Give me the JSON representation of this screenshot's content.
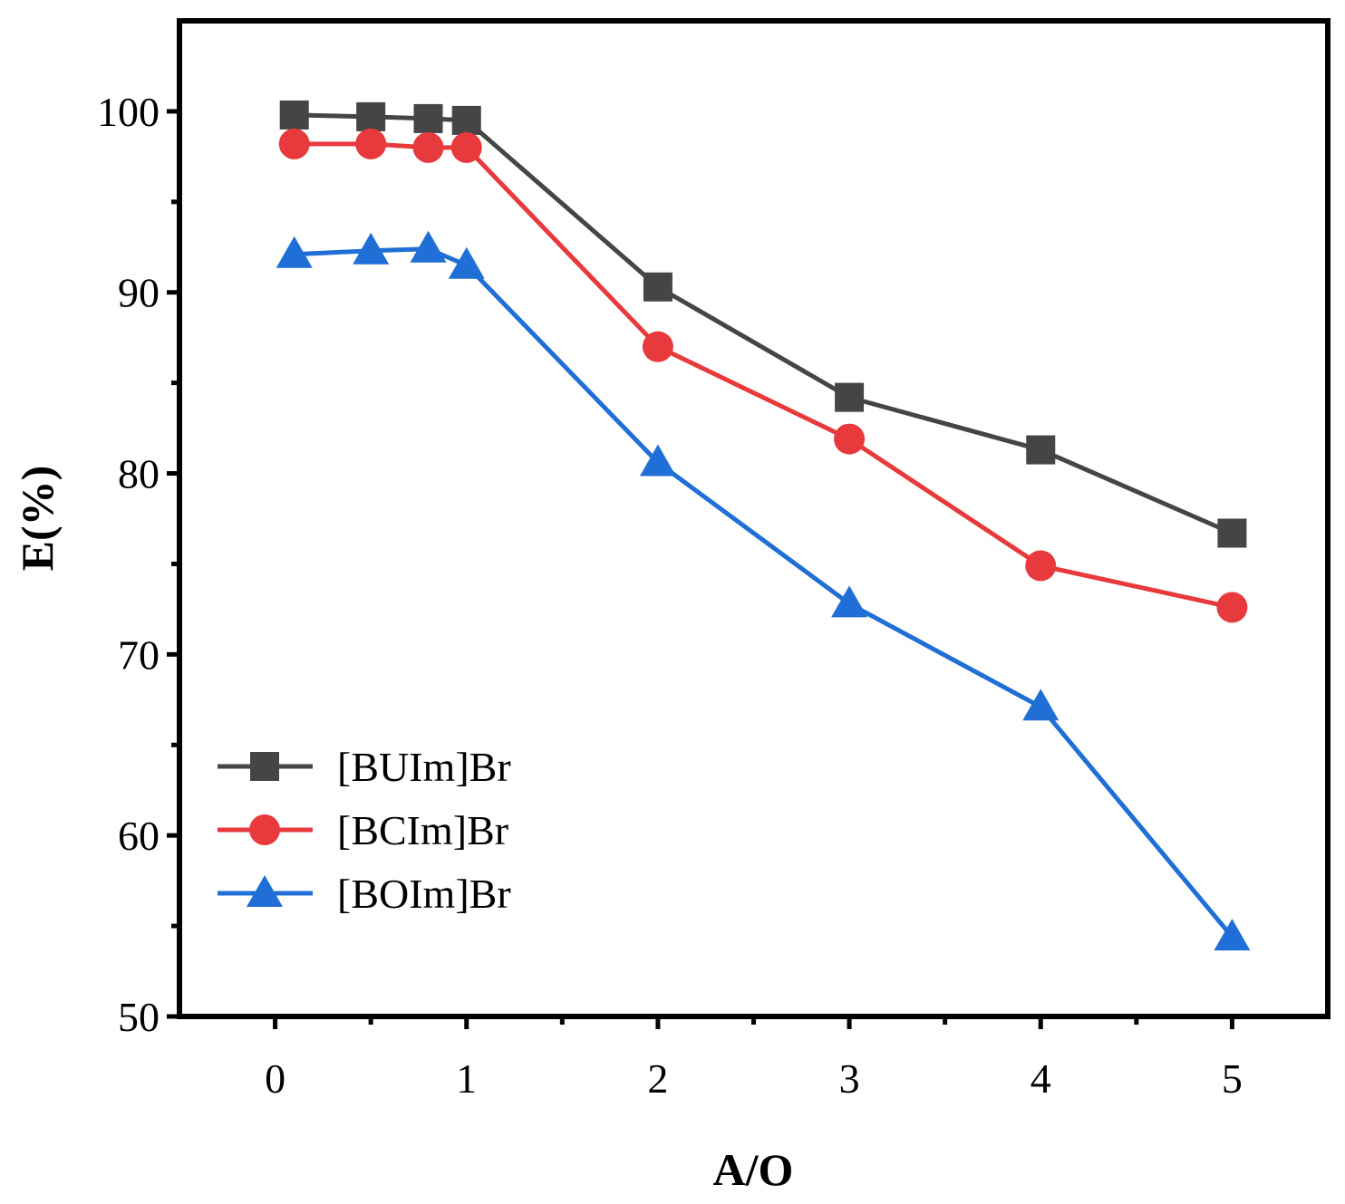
{
  "chart_data": {
    "type": "line",
    "title": "",
    "xlabel": "A/O",
    "ylabel": "E(%)",
    "xlim": [
      -0.5,
      5.5
    ],
    "ylim": [
      50,
      105
    ],
    "xticks": [
      0,
      1,
      2,
      3,
      4,
      5
    ],
    "yticks": [
      50,
      60,
      70,
      80,
      90,
      100
    ],
    "x": [
      0.1,
      0.5,
      0.8,
      1,
      2,
      3,
      4,
      5
    ],
    "legend_position": "bottom-left",
    "series": [
      {
        "name": "[BUIm]Br",
        "marker": "square",
        "color": "#454545",
        "values": [
          99.8,
          99.7,
          99.6,
          99.5,
          90.3,
          84.2,
          81.3,
          76.7
        ]
      },
      {
        "name": "[BCIm]Br",
        "marker": "circle",
        "color": "#e8393c",
        "values": [
          98.2,
          98.2,
          98.0,
          98.0,
          87.0,
          81.9,
          74.9,
          72.6
        ]
      },
      {
        "name": "[BOIm]Br",
        "marker": "triangle",
        "color": "#1f6fd6",
        "values": [
          92.1,
          92.3,
          92.4,
          91.5,
          80.6,
          72.8,
          67.1,
          54.4
        ]
      }
    ]
  }
}
